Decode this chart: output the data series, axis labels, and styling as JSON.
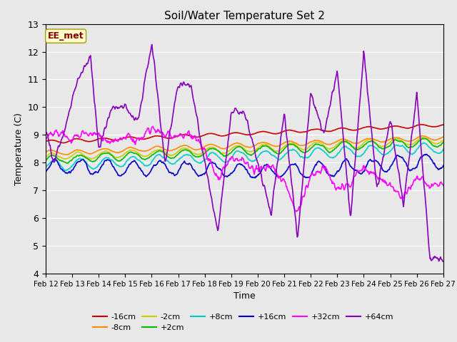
{
  "title": "Soil/Water Temperature Set 2",
  "xlabel": "Time",
  "ylabel": "Temperature (C)",
  "ylim": [
    4.0,
    13.0
  ],
  "yticks": [
    4.0,
    5.0,
    6.0,
    7.0,
    8.0,
    9.0,
    10.0,
    11.0,
    12.0,
    13.0
  ],
  "xtick_labels": [
    "Feb 12",
    "Feb 13",
    "Feb 14",
    "Feb 15",
    "Feb 16",
    "Feb 17",
    "Feb 18",
    "Feb 19",
    "Feb 20",
    "Feb 21",
    "Feb 22",
    "Feb 23",
    "Feb 24",
    "Feb 25",
    "Feb 26",
    "Feb 27"
  ],
  "series_order": [
    "-16cm",
    "-8cm",
    "-2cm",
    "+2cm",
    "+8cm",
    "+16cm",
    "+32cm",
    "+64cm"
  ],
  "series": {
    "-16cm": {
      "color": "#cc0000",
      "lw": 1.2
    },
    "-8cm": {
      "color": "#ff8c00",
      "lw": 1.2
    },
    "-2cm": {
      "color": "#cccc00",
      "lw": 1.2
    },
    "+2cm": {
      "color": "#00bb00",
      "lw": 1.2
    },
    "+8cm": {
      "color": "#00cccc",
      "lw": 1.2
    },
    "+16cm": {
      "color": "#0000cc",
      "lw": 1.2
    },
    "+32cm": {
      "color": "#ff00ff",
      "lw": 1.2
    },
    "+64cm": {
      "color": "#8800bb",
      "lw": 1.2
    }
  },
  "annotation_text": "EE_met",
  "plot_bg_color": "#e8e8e8",
  "fig_bg_color": "#e8e8e8",
  "grid_color": "#ffffff",
  "legend_ncol_row1": 6,
  "legend_ncol_row2": 2
}
